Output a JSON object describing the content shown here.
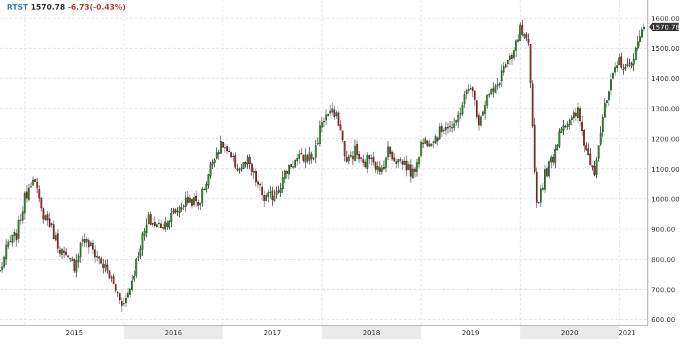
{
  "header": {
    "symbol": "RTST",
    "last": "1570.78",
    "change": "-6.73(-0.43%)"
  },
  "last_price_tag": "1570.78",
  "colors": {
    "up": "#2e8b2e",
    "down": "#a52a2a",
    "symbol": "#4a78b8",
    "change_negative": "#c0392b",
    "grid": "#dddddd",
    "axis": "#888888",
    "year_band": "#ebebeb"
  },
  "chart_data": {
    "type": "candlestick",
    "title": "",
    "xlabel": "",
    "ylabel": "",
    "ylim": [
      580,
      1660
    ],
    "y_ticks": [
      "600.00",
      "700.00",
      "800.00",
      "900.00",
      "1000.00",
      "1100.00",
      "1200.00",
      "1300.00",
      "1400.00",
      "1500.00",
      "1600.00"
    ],
    "x_ticks": [
      "2015",
      "2016",
      "2017",
      "2018",
      "2019",
      "2020",
      "2021"
    ],
    "x_range": [
      "2014-10",
      "2021-04"
    ],
    "grid": true,
    "last_price": 1570.78,
    "series": [
      {
        "frequency": "weekly",
        "points": [
          [
            "2014-10",
            760
          ],
          [
            "2014-11",
            850
          ],
          [
            "2014-12",
            880
          ],
          [
            "2015-01",
            1000
          ],
          [
            "2015-02",
            1080
          ],
          [
            "2015-03",
            960
          ],
          [
            "2015-04",
            920
          ],
          [
            "2015-05",
            850
          ],
          [
            "2015-06",
            800
          ],
          [
            "2015-07",
            780
          ],
          [
            "2015-08",
            870
          ],
          [
            "2015-09",
            840
          ],
          [
            "2015-10",
            800
          ],
          [
            "2015-11",
            760
          ],
          [
            "2015-12",
            700
          ],
          [
            "2016-01",
            650
          ],
          [
            "2016-02",
            730
          ],
          [
            "2016-03",
            850
          ],
          [
            "2016-04",
            930
          ],
          [
            "2016-05",
            910
          ],
          [
            "2016-06",
            920
          ],
          [
            "2016-07",
            950
          ],
          [
            "2016-08",
            980
          ],
          [
            "2016-09",
            1000
          ],
          [
            "2016-10",
            980
          ],
          [
            "2016-11",
            1060
          ],
          [
            "2016-12",
            1150
          ],
          [
            "2017-01",
            1180
          ],
          [
            "2017-02",
            1130
          ],
          [
            "2017-03",
            1100
          ],
          [
            "2017-04",
            1120
          ],
          [
            "2017-05",
            1060
          ],
          [
            "2017-06",
            1000
          ],
          [
            "2017-07",
            1010
          ],
          [
            "2017-08",
            1050
          ],
          [
            "2017-09",
            1110
          ],
          [
            "2017-10",
            1130
          ],
          [
            "2017-11",
            1140
          ],
          [
            "2017-12",
            1140
          ],
          [
            "2018-01",
            1260
          ],
          [
            "2018-02",
            1290
          ],
          [
            "2018-03",
            1260
          ],
          [
            "2018-04",
            1120
          ],
          [
            "2018-05",
            1160
          ],
          [
            "2018-06",
            1110
          ],
          [
            "2018-07",
            1150
          ],
          [
            "2018-08",
            1080
          ],
          [
            "2018-09",
            1160
          ],
          [
            "2018-10",
            1130
          ],
          [
            "2018-11",
            1120
          ],
          [
            "2018-12",
            1080
          ],
          [
            "2019-01",
            1180
          ],
          [
            "2019-02",
            1200
          ],
          [
            "2019-03",
            1210
          ],
          [
            "2019-04",
            1250
          ],
          [
            "2019-05",
            1230
          ],
          [
            "2019-06",
            1320
          ],
          [
            "2019-07",
            1380
          ],
          [
            "2019-08",
            1260
          ],
          [
            "2019-09",
            1340
          ],
          [
            "2019-10",
            1360
          ],
          [
            "2019-11",
            1440
          ],
          [
            "2019-12",
            1460
          ],
          [
            "2020-01",
            1560
          ],
          [
            "2020-02",
            1500
          ],
          [
            "2020-03",
            980
          ],
          [
            "2020-04",
            1080
          ],
          [
            "2020-05",
            1140
          ],
          [
            "2020-06",
            1250
          ],
          [
            "2020-07",
            1250
          ],
          [
            "2020-08",
            1290
          ],
          [
            "2020-09",
            1160
          ],
          [
            "2020-10",
            1100
          ],
          [
            "2020-11",
            1270
          ],
          [
            "2020-12",
            1380
          ],
          [
            "2021-01",
            1460
          ],
          [
            "2021-02",
            1430
          ],
          [
            "2021-03",
            1490
          ],
          [
            "2021-04",
            1570.78
          ]
        ]
      }
    ]
  }
}
